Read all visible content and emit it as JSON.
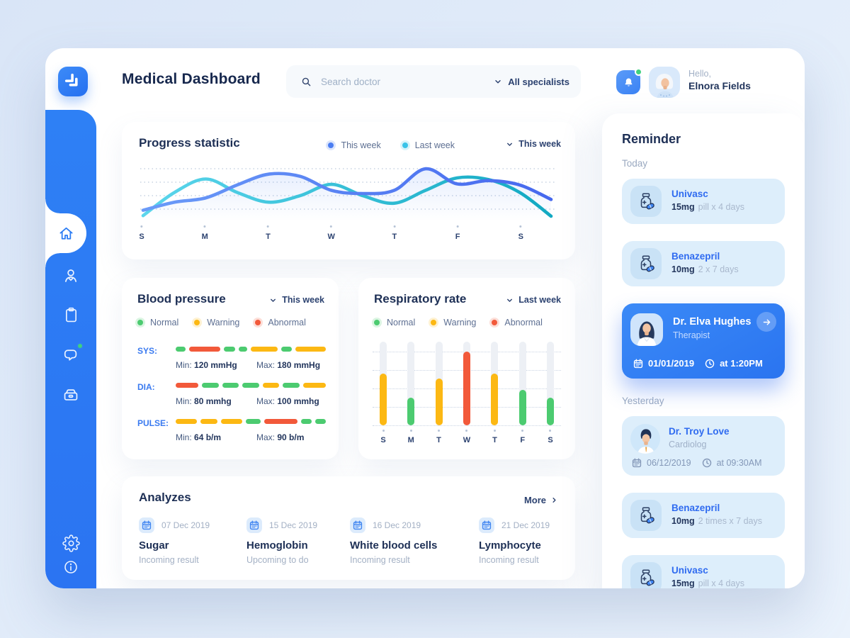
{
  "app": {
    "title": "Medical Dashboard"
  },
  "header": {
    "search_placeholder": "Search doctor",
    "specialists_filter": "All specialists",
    "greeting": "Hello,",
    "user_name": "Elnora Fields"
  },
  "sidebar": {
    "items": [
      {
        "id": "home",
        "icon": "home-icon",
        "active": true,
        "badge": false
      },
      {
        "id": "patients",
        "icon": "patient-icon",
        "active": false,
        "badge": false
      },
      {
        "id": "records",
        "icon": "clipboard-icon",
        "active": false,
        "badge": false
      },
      {
        "id": "messages",
        "icon": "chat-icon",
        "active": false,
        "badge": true
      },
      {
        "id": "archive",
        "icon": "archive-icon",
        "active": false,
        "badge": false
      }
    ],
    "footer_items": [
      {
        "id": "settings",
        "icon": "gear-icon"
      },
      {
        "id": "info",
        "icon": "info-icon"
      }
    ]
  },
  "progress": {
    "title": "Progress statistic",
    "range_selector": "This week",
    "legend": [
      {
        "label": "This week",
        "color": "#4a7df2"
      },
      {
        "label": "Last week",
        "color": "#38c3e8"
      }
    ]
  },
  "chart_data": {
    "type": "line",
    "title": "Progress statistic",
    "x_labels": [
      "S",
      "M",
      "T",
      "W",
      "T",
      "F",
      "S"
    ],
    "note": "values estimated 0-100, sampled at half-day steps plus a trailing point",
    "series": [
      {
        "name": "This week",
        "color": "#4a7df2",
        "values": [
          15,
          30,
          38,
          62,
          82,
          78,
          52,
          46,
          52,
          92,
          64,
          70,
          62,
          35
        ]
      },
      {
        "name": "Last week",
        "color": "#38c3e8",
        "values": [
          5,
          48,
          73,
          48,
          30,
          42,
          63,
          42,
          28,
          52,
          75,
          72,
          48,
          4
        ]
      }
    ],
    "ylim": [
      0,
      100
    ],
    "grid": "4 dotted horizontal lines",
    "legend_position": "top-right"
  },
  "blood_pressure": {
    "title": "Blood pressure",
    "range_selector": "This week",
    "legend": [
      {
        "label": "Normal",
        "color": "#4ccb70"
      },
      {
        "label": "Warning",
        "color": "#fcb813"
      },
      {
        "label": "Abnormal",
        "color": "#f2593a"
      }
    ],
    "rows": [
      {
        "label": "SYS:",
        "min_label": "Min:",
        "min_value": "120 mmHg",
        "max_label": "Max:",
        "max_value": "180 mmHg",
        "segments": [
          {
            "status": "normal",
            "w": 1.1
          },
          {
            "status": "abnormal",
            "w": 3.4
          },
          {
            "status": "normal",
            "w": 1.2
          },
          {
            "status": "normal",
            "w": 1.0
          },
          {
            "status": "warning",
            "w": 2.9
          },
          {
            "status": "normal",
            "w": 1.2
          },
          {
            "status": "warning",
            "w": 3.3
          }
        ]
      },
      {
        "label": "DIA:",
        "min_label": "Min:",
        "min_value": "80 mmhg",
        "max_label": "Max:",
        "max_value": "100 mmhg",
        "segments": [
          {
            "status": "abnormal",
            "w": 2.2
          },
          {
            "status": "normal",
            "w": 1.6
          },
          {
            "status": "normal",
            "w": 1.6
          },
          {
            "status": "normal",
            "w": 1.6
          },
          {
            "status": "warning",
            "w": 1.6
          },
          {
            "status": "normal",
            "w": 1.6
          },
          {
            "status": "warning",
            "w": 2.2
          }
        ]
      },
      {
        "label": "PULSE:",
        "min_label": "Min:",
        "min_value": "64 b/m",
        "max_label": "Max:",
        "max_value": "90 b/m",
        "segments": [
          {
            "status": "warning",
            "w": 1.8
          },
          {
            "status": "warning",
            "w": 1.5
          },
          {
            "status": "warning",
            "w": 1.8
          },
          {
            "status": "normal",
            "w": 1.3
          },
          {
            "status": "abnormal",
            "w": 2.9
          },
          {
            "status": "normal",
            "w": 0.9
          },
          {
            "status": "normal",
            "w": 0.9
          }
        ]
      }
    ]
  },
  "respiratory": {
    "title": "Respiratory rate",
    "range_selector": "Last week",
    "legend": [
      {
        "label": "Normal",
        "color": "#4ccb70"
      },
      {
        "label": "Warning",
        "color": "#fcb813"
      },
      {
        "label": "Abnormal",
        "color": "#f2593a"
      }
    ],
    "bars": [
      {
        "day": "S",
        "value": 62,
        "status": "warning"
      },
      {
        "day": "M",
        "value": 33,
        "status": "normal"
      },
      {
        "day": "T",
        "value": 56,
        "status": "warning"
      },
      {
        "day": "W",
        "value": 88,
        "status": "abnormal"
      },
      {
        "day": "T",
        "value": 62,
        "status": "warning"
      },
      {
        "day": "F",
        "value": 42,
        "status": "normal"
      },
      {
        "day": "S",
        "value": 33,
        "status": "normal"
      }
    ]
  },
  "analyzes": {
    "title": "Analyzes",
    "more_label": "More",
    "items": [
      {
        "date": "07 Dec 2019",
        "name": "Sugar",
        "status": "Incoming result"
      },
      {
        "date": "15 Dec 2019",
        "name": "Hemoglobin",
        "status": "Upcoming to do"
      },
      {
        "date": "16 Dec 2019",
        "name": "White blood cells",
        "status": "Incoming result"
      },
      {
        "date": "21 Dec 2019",
        "name": "Lymphocyte",
        "status": "Incoming result"
      }
    ]
  },
  "reminder": {
    "title": "Reminder",
    "sections": [
      {
        "label": "Today",
        "cards": [
          {
            "type": "medication",
            "name": "Univasc",
            "dose": "15mg",
            "schedule": "pill x 4 days"
          },
          {
            "type": "medication",
            "name": "Benazepril",
            "dose": "10mg",
            "schedule": "2 x 7 days"
          },
          {
            "type": "appointment",
            "highlighted": true,
            "avatar": "female",
            "name": "Dr. Elva Hughes",
            "role": "Therapist",
            "date": "01/01/2019",
            "time": "at 1:20PM"
          }
        ]
      },
      {
        "label": "Yesterday",
        "cards": [
          {
            "type": "appointment",
            "highlighted": false,
            "avatar": "male",
            "name": "Dr. Troy Love",
            "role": "Cardiolog",
            "date": "06/12/2019",
            "time": "at 09:30AM"
          },
          {
            "type": "medication",
            "name": "Benazepril",
            "dose": "10mg",
            "schedule": "2 times x 7 days"
          },
          {
            "type": "medication",
            "name": "Univasc",
            "dose": "15mg",
            "schedule": "pill x 4 days"
          }
        ]
      }
    ]
  },
  "colors": {
    "primary": "#2e7cf4",
    "navy": "#1d2f55",
    "text_gray": "#a3b1c6",
    "green": "#4ccb70",
    "yellow": "#fcb813",
    "red": "#f2593a",
    "cyan": "#38c3e8",
    "line_blue": "#4a7df2",
    "card_light_blue": "#ddeefb",
    "badge_green": "#3fd17f"
  }
}
